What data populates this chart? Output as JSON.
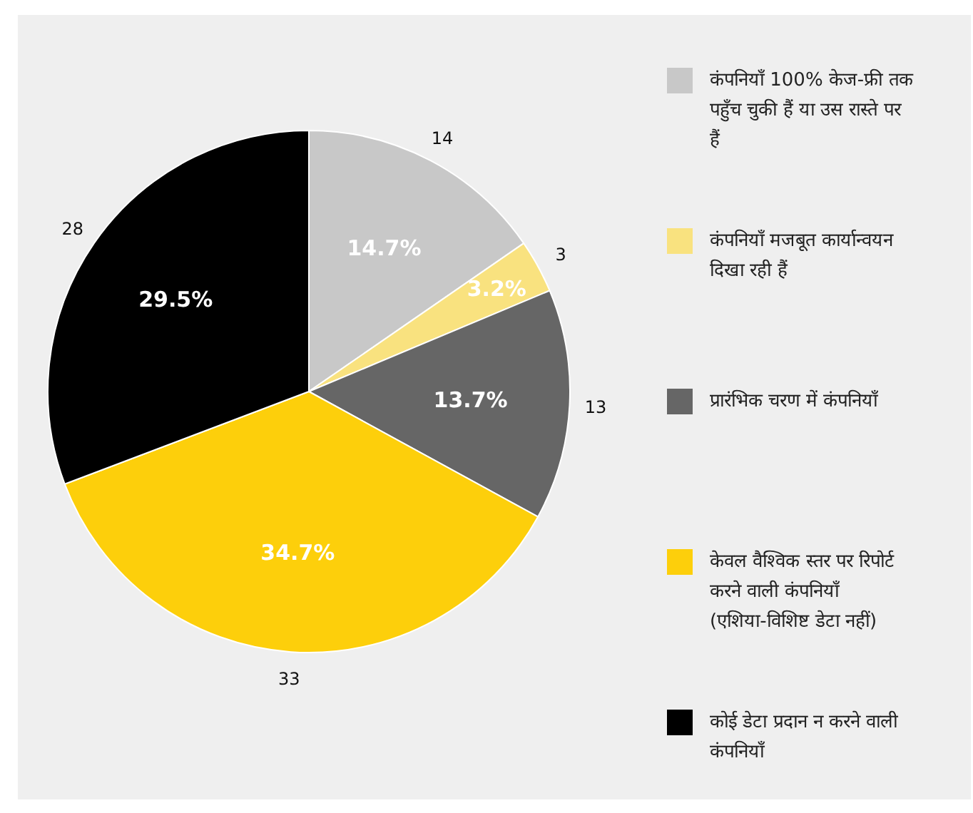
{
  "chart_data": {
    "type": "pie",
    "categories": [
      "कंपनियाँ 100% केज-फ्री तक पहुँच चुकी हैं या उस रास्ते पर हैं",
      "कंपनियाँ मजबूत कार्यान्वयन दिखा रही हैं",
      "प्रारंभिक चरण में कंपनियाँ",
      "केवल वैश्विक स्तर पर रिपोर्ट करने वाली कंपनियाँ (एशिया-विशिष्ट डेटा नहीं)",
      "कोई डेटा प्रदान न करने वाली कंपनियाँ"
    ],
    "values": [
      14,
      3,
      13,
      33,
      28
    ],
    "colors": [
      "#c8c8c8",
      "#f9e27f",
      "#666666",
      "#fdcf0b",
      "#000000"
    ],
    "annotations": [
      "14.7%",
      "3.2%",
      "13.7%",
      "34.7%",
      "29.5%"
    ],
    "data_labels": true,
    "legend": "right"
  }
}
